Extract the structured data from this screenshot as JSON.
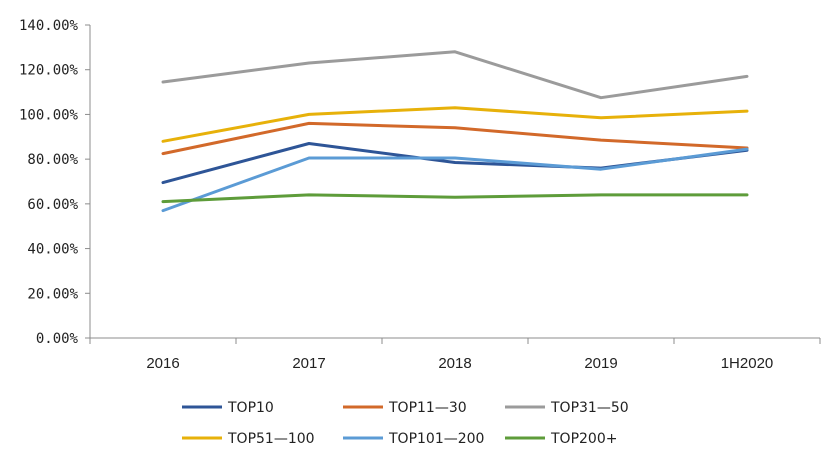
{
  "chart_data": {
    "type": "line",
    "categories": [
      "2016",
      "2017",
      "2018",
      "2019",
      "1H2020"
    ],
    "y_ticks": [
      "0.00%",
      "20.00%",
      "40.00%",
      "60.00%",
      "80.00%",
      "100.00%",
      "120.00%",
      "140.00%"
    ],
    "ylim": [
      0,
      140
    ],
    "grid": false,
    "legend_position": "bottom",
    "series": [
      {
        "name": "TOP10",
        "color": "#2e5597",
        "values": [
          69.5,
          87,
          78.5,
          76,
          84
        ]
      },
      {
        "name": "TOP11—30",
        "color": "#d2692a",
        "values": [
          82.5,
          96,
          94,
          88.5,
          85
        ]
      },
      {
        "name": "TOP31—50",
        "color": "#9b9b9b",
        "values": [
          114.5,
          123,
          128,
          107.5,
          117
        ]
      },
      {
        "name": "TOP51—100",
        "color": "#e7b10a",
        "values": [
          88,
          100,
          103,
          98.5,
          101.5
        ]
      },
      {
        "name": "TOP101—200",
        "color": "#5b9bd5",
        "values": [
          57,
          80.5,
          80.5,
          75.5,
          84.5
        ]
      },
      {
        "name": "TOP200+",
        "color": "#5e9c3a",
        "values": [
          61,
          64,
          63,
          64,
          64
        ]
      }
    ]
  }
}
